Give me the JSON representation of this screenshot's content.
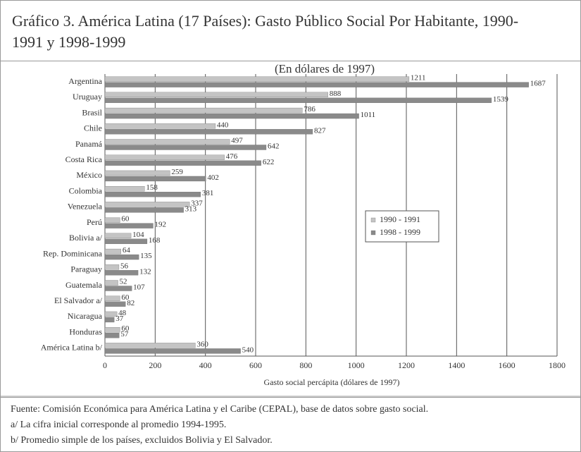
{
  "chart_data": {
    "type": "bar",
    "orientation": "horizontal",
    "title": "Gráfico 3. América Latina (17 Países): Gasto Público Social Por Habitante, 1990-1991 y 1998-1999",
    "subtitle": "(En dólares de 1997)",
    "x_label": "Gasto social percápita (dólares de 1997)",
    "categories": [
      "Argentina",
      "Uruguay",
      "Brasil",
      "Chile",
      "Panamá",
      "Costa Rica",
      "México",
      "Colombia",
      "Venezuela",
      "Perú",
      "Bolivia a/",
      "Rep. Dominicana",
      "Paraguay",
      "Guatemala",
      "El Salvador a/",
      "Nicaragua",
      "Honduras",
      "América Latina b/"
    ],
    "series": [
      {
        "name": "1990 - 1991",
        "color": "#c4c4c4",
        "values": [
          1211,
          888,
          786,
          440,
          497,
          476,
          259,
          158,
          337,
          60,
          104,
          64,
          56,
          52,
          60,
          48,
          60,
          360
        ]
      },
      {
        "name": "1998 - 1999",
        "color": "#8a8a8a",
        "values": [
          1687,
          1539,
          1011,
          827,
          642,
          622,
          402,
          381,
          313,
          192,
          168,
          135,
          132,
          107,
          82,
          37,
          57,
          540
        ]
      }
    ],
    "xlim": [
      0,
      1800
    ],
    "xticks": [
      0,
      200,
      400,
      600,
      800,
      1000,
      1200,
      1400,
      1600,
      1800
    ],
    "grid": true,
    "legend": "right",
    "notes": [
      "Fuente: Comisión Económica para América Latina y el Caribe (CEPAL), base de datos sobre gasto social.",
      "a/ La cifra inicial corresponde al promedio 1994-1995.",
      "b/ Promedio simple de los países, excluidos Bolivia y El Salvador."
    ]
  }
}
